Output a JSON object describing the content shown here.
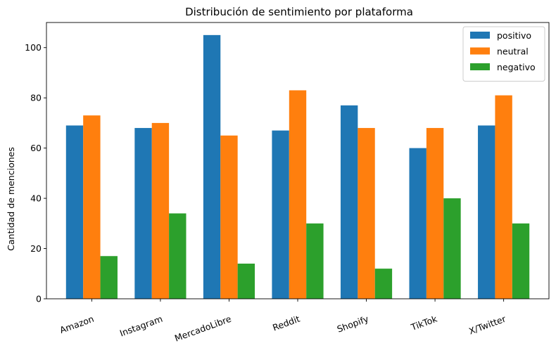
{
  "chart_data": {
    "type": "bar",
    "title": "Distribución de sentimiento por plataforma",
    "xlabel": "",
    "ylabel": "Cantidad de menciones",
    "categories": [
      "Amazon",
      "Instagram",
      "MercadoLibre",
      "Reddit",
      "Shopify",
      "TikTok",
      "X/Twitter"
    ],
    "series": [
      {
        "name": "positivo",
        "color": "#1f77b4",
        "values": [
          69,
          68,
          105,
          67,
          77,
          60,
          69
        ]
      },
      {
        "name": "neutral",
        "color": "#ff7f0e",
        "values": [
          73,
          70,
          65,
          83,
          68,
          68,
          81
        ]
      },
      {
        "name": "negativo",
        "color": "#2ca02c",
        "values": [
          17,
          34,
          14,
          30,
          12,
          40,
          30
        ]
      }
    ],
    "ylim": [
      0,
      110
    ],
    "yticks": [
      0,
      20,
      40,
      60,
      80,
      100
    ],
    "grid": false,
    "legend_position": "top-right",
    "xtick_rotation": "rotated"
  }
}
